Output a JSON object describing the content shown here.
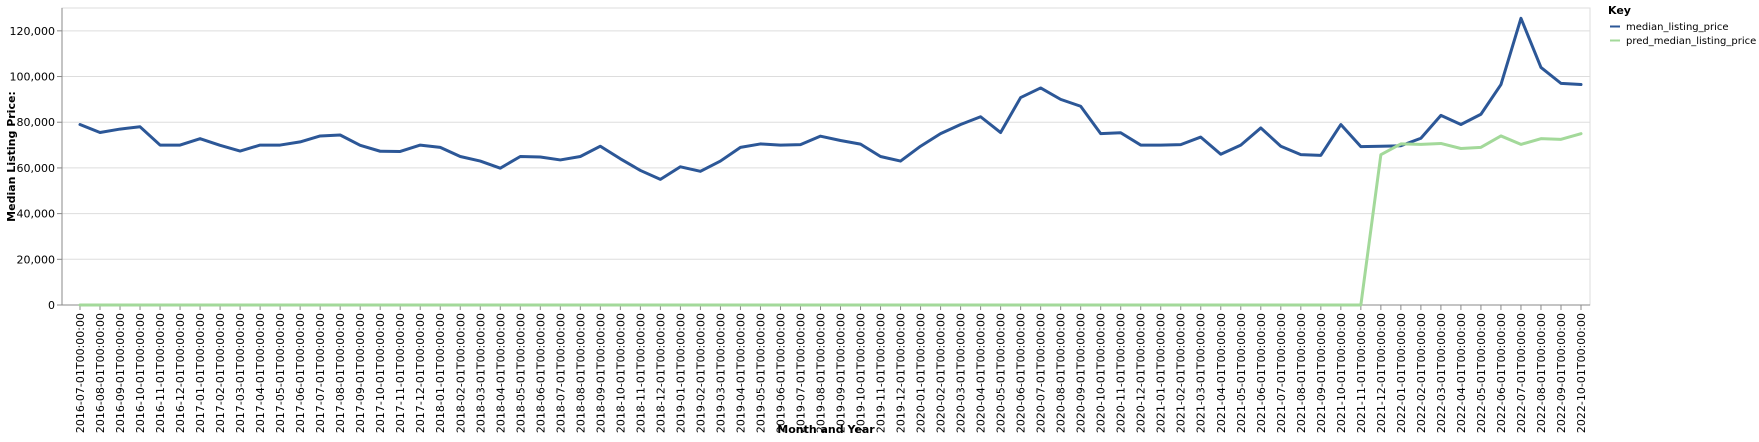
{
  "chart_data": {
    "type": "line",
    "title": "",
    "xlabel": "Month and Year",
    "ylabel": "Median Listing Price:",
    "ylim": [
      0,
      130000
    ],
    "yticks": [
      0,
      20000,
      40000,
      60000,
      80000,
      100000,
      120000
    ],
    "grid": true,
    "legend": {
      "title": "Key",
      "placement": "top-right"
    },
    "x": [
      "2016-07-01T00:00:00",
      "2016-08-01T00:00:00",
      "2016-09-01T00:00:00",
      "2016-10-01T00:00:00",
      "2016-11-01T00:00:00",
      "2016-12-01T00:00:00",
      "2017-01-01T00:00:00",
      "2017-02-01T00:00:00",
      "2017-03-01T00:00:00",
      "2017-04-01T00:00:00",
      "2017-05-01T00:00:00",
      "2017-06-01T00:00:00",
      "2017-07-01T00:00:00",
      "2017-08-01T00:00:00",
      "2017-09-01T00:00:00",
      "2017-10-01T00:00:00",
      "2017-11-01T00:00:00",
      "2017-12-01T00:00:00",
      "2018-01-01T00:00:00",
      "2018-02-01T00:00:00",
      "2018-03-01T00:00:00",
      "2018-04-01T00:00:00",
      "2018-05-01T00:00:00",
      "2018-06-01T00:00:00",
      "2018-07-01T00:00:00",
      "2018-08-01T00:00:00",
      "2018-09-01T00:00:00",
      "2018-10-01T00:00:00",
      "2018-11-01T00:00:00",
      "2018-12-01T00:00:00",
      "2019-01-01T00:00:00",
      "2019-02-01T00:00:00",
      "2019-03-01T00:00:00",
      "2019-04-01T00:00:00",
      "2019-05-01T00:00:00",
      "2019-06-01T00:00:00",
      "2019-07-01T00:00:00",
      "2019-08-01T00:00:00",
      "2019-09-01T00:00:00",
      "2019-10-01T00:00:00",
      "2019-11-01T00:00:00",
      "2019-12-01T00:00:00",
      "2020-01-01T00:00:00",
      "2020-02-01T00:00:00",
      "2020-03-01T00:00:00",
      "2020-04-01T00:00:00",
      "2020-05-01T00:00:00",
      "2020-06-01T00:00:00",
      "2020-07-01T00:00:00",
      "2020-08-01T00:00:00",
      "2020-09-01T00:00:00",
      "2020-10-01T00:00:00",
      "2020-11-01T00:00:00",
      "2020-12-01T00:00:00",
      "2021-01-01T00:00:00",
      "2021-02-01T00:00:00",
      "2021-03-01T00:00:00",
      "2021-04-01T00:00:00",
      "2021-05-01T00:00:00",
      "2021-06-01T00:00:00",
      "2021-07-01T00:00:00",
      "2021-08-01T00:00:00",
      "2021-09-01T00:00:00",
      "2021-10-01T00:00:00",
      "2021-11-01T00:00:00",
      "2021-12-01T00:00:00",
      "2022-01-01T00:00:00",
      "2022-02-01T00:00:00",
      "2022-03-01T00:00:00",
      "2022-04-01T00:00:00",
      "2022-05-01T00:00:00",
      "2022-06-01T00:00:00",
      "2022-07-01T00:00:00",
      "2022-08-01T00:00:00",
      "2022-09-01T00:00:00",
      "2022-10-01T00:00:00"
    ],
    "series": [
      {
        "name": "median_listing_price",
        "color": "#2c5797",
        "values": [
          79000,
          75500,
          77000,
          78000,
          70000,
          70000,
          72800,
          69900,
          67400,
          70000,
          70000,
          71400,
          74000,
          74400,
          69900,
          67300,
          67200,
          70000,
          69000,
          65000,
          63000,
          59900,
          65000,
          64800,
          63500,
          65000,
          69500,
          64000,
          58900,
          55000,
          60500,
          58500,
          63000,
          69000,
          70500,
          70000,
          70200,
          73900,
          72000,
          70400,
          65000,
          63000,
          69500,
          75000,
          79000,
          82400,
          75500,
          90800,
          95000,
          90000,
          87000,
          75000,
          75400,
          70000,
          70000,
          70200,
          73500,
          66000,
          70000,
          77500,
          69500,
          65800,
          65500,
          79000,
          69300,
          69500,
          69700,
          73000,
          83000,
          79000,
          83500,
          96500,
          125500,
          104000,
          97000,
          96500
        ]
      },
      {
        "name": "pred_median_listing_price",
        "color": "#a3d99a",
        "values": [
          0,
          0,
          0,
          0,
          0,
          0,
          0,
          0,
          0,
          0,
          0,
          0,
          0,
          0,
          0,
          0,
          0,
          0,
          0,
          0,
          0,
          0,
          0,
          0,
          0,
          0,
          0,
          0,
          0,
          0,
          0,
          0,
          0,
          0,
          0,
          0,
          0,
          0,
          0,
          0,
          0,
          0,
          0,
          0,
          0,
          0,
          0,
          0,
          0,
          0,
          0,
          0,
          0,
          0,
          0,
          0,
          0,
          0,
          0,
          0,
          0,
          0,
          0,
          0,
          0,
          65800,
          70500,
          70300,
          70700,
          68500,
          69000,
          74000,
          70300,
          72800,
          72500,
          75000
        ]
      }
    ]
  }
}
